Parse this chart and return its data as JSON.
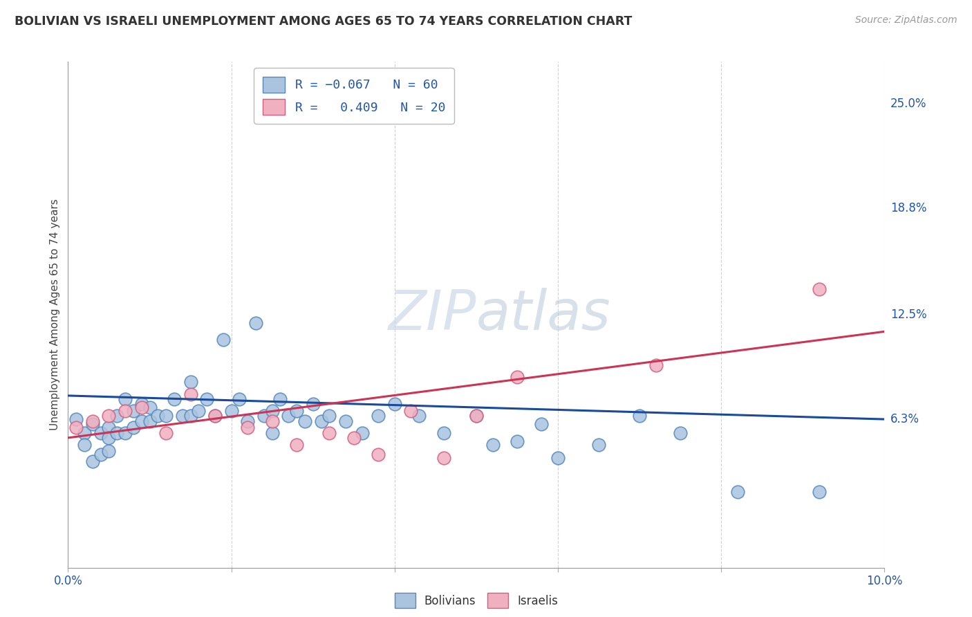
{
  "title": "BOLIVIAN VS ISRAELI UNEMPLOYMENT AMONG AGES 65 TO 74 YEARS CORRELATION CHART",
  "source": "Source: ZipAtlas.com",
  "ylabel": "Unemployment Among Ages 65 to 74 years",
  "ytick_labels": [
    "25.0%",
    "18.8%",
    "12.5%",
    "6.3%"
  ],
  "ytick_values": [
    0.25,
    0.188,
    0.125,
    0.063
  ],
  "xlim": [
    0.0,
    0.1
  ],
  "ylim": [
    -0.025,
    0.275
  ],
  "bolivia_color": "#aac4e0",
  "bolivia_edge_color": "#5588bb",
  "israel_color": "#f0b0c0",
  "israel_edge_color": "#d06080",
  "bolivia_line_color": "#1a4a9a",
  "israel_line_color": "#cc3355",
  "background_color": "#ffffff",
  "grid_color": "#cccccc",
  "watermark_color": "#ccd8e8",
  "bolivia_x": [
    0.001,
    0.002,
    0.002,
    0.003,
    0.003,
    0.004,
    0.004,
    0.005,
    0.005,
    0.005,
    0.006,
    0.006,
    0.007,
    0.007,
    0.008,
    0.008,
    0.009,
    0.009,
    0.01,
    0.01,
    0.011,
    0.012,
    0.013,
    0.014,
    0.015,
    0.015,
    0.016,
    0.017,
    0.018,
    0.019,
    0.02,
    0.021,
    0.022,
    0.023,
    0.024,
    0.025,
    0.025,
    0.026,
    0.027,
    0.028,
    0.029,
    0.03,
    0.031,
    0.032,
    0.034,
    0.036,
    0.038,
    0.04,
    0.043,
    0.046,
    0.05,
    0.052,
    0.055,
    0.058,
    0.06,
    0.065,
    0.07,
    0.075,
    0.082,
    0.092
  ],
  "bolivia_y": [
    0.063,
    0.055,
    0.048,
    0.06,
    0.038,
    0.055,
    0.042,
    0.058,
    0.052,
    0.044,
    0.065,
    0.055,
    0.075,
    0.055,
    0.068,
    0.058,
    0.072,
    0.062,
    0.07,
    0.062,
    0.065,
    0.065,
    0.075,
    0.065,
    0.085,
    0.065,
    0.068,
    0.075,
    0.065,
    0.11,
    0.068,
    0.075,
    0.062,
    0.12,
    0.065,
    0.068,
    0.055,
    0.075,
    0.065,
    0.068,
    0.062,
    0.072,
    0.062,
    0.065,
    0.062,
    0.055,
    0.065,
    0.072,
    0.065,
    0.055,
    0.065,
    0.048,
    0.05,
    0.06,
    0.04,
    0.048,
    0.065,
    0.055,
    0.02,
    0.02
  ],
  "israel_x": [
    0.001,
    0.003,
    0.005,
    0.007,
    0.009,
    0.012,
    0.015,
    0.018,
    0.022,
    0.025,
    0.028,
    0.032,
    0.035,
    0.038,
    0.042,
    0.046,
    0.05,
    0.055,
    0.072,
    0.092
  ],
  "israel_y": [
    0.058,
    0.062,
    0.065,
    0.068,
    0.07,
    0.055,
    0.078,
    0.065,
    0.058,
    0.062,
    0.048,
    0.055,
    0.052,
    0.042,
    0.068,
    0.04,
    0.065,
    0.088,
    0.095,
    0.14
  ],
  "bolivia_trend_x": [
    0.0,
    0.1
  ],
  "bolivia_trend_y": [
    0.077,
    0.063
  ],
  "israel_trend_x": [
    0.0,
    0.1
  ],
  "israel_trend_y": [
    0.052,
    0.115
  ]
}
